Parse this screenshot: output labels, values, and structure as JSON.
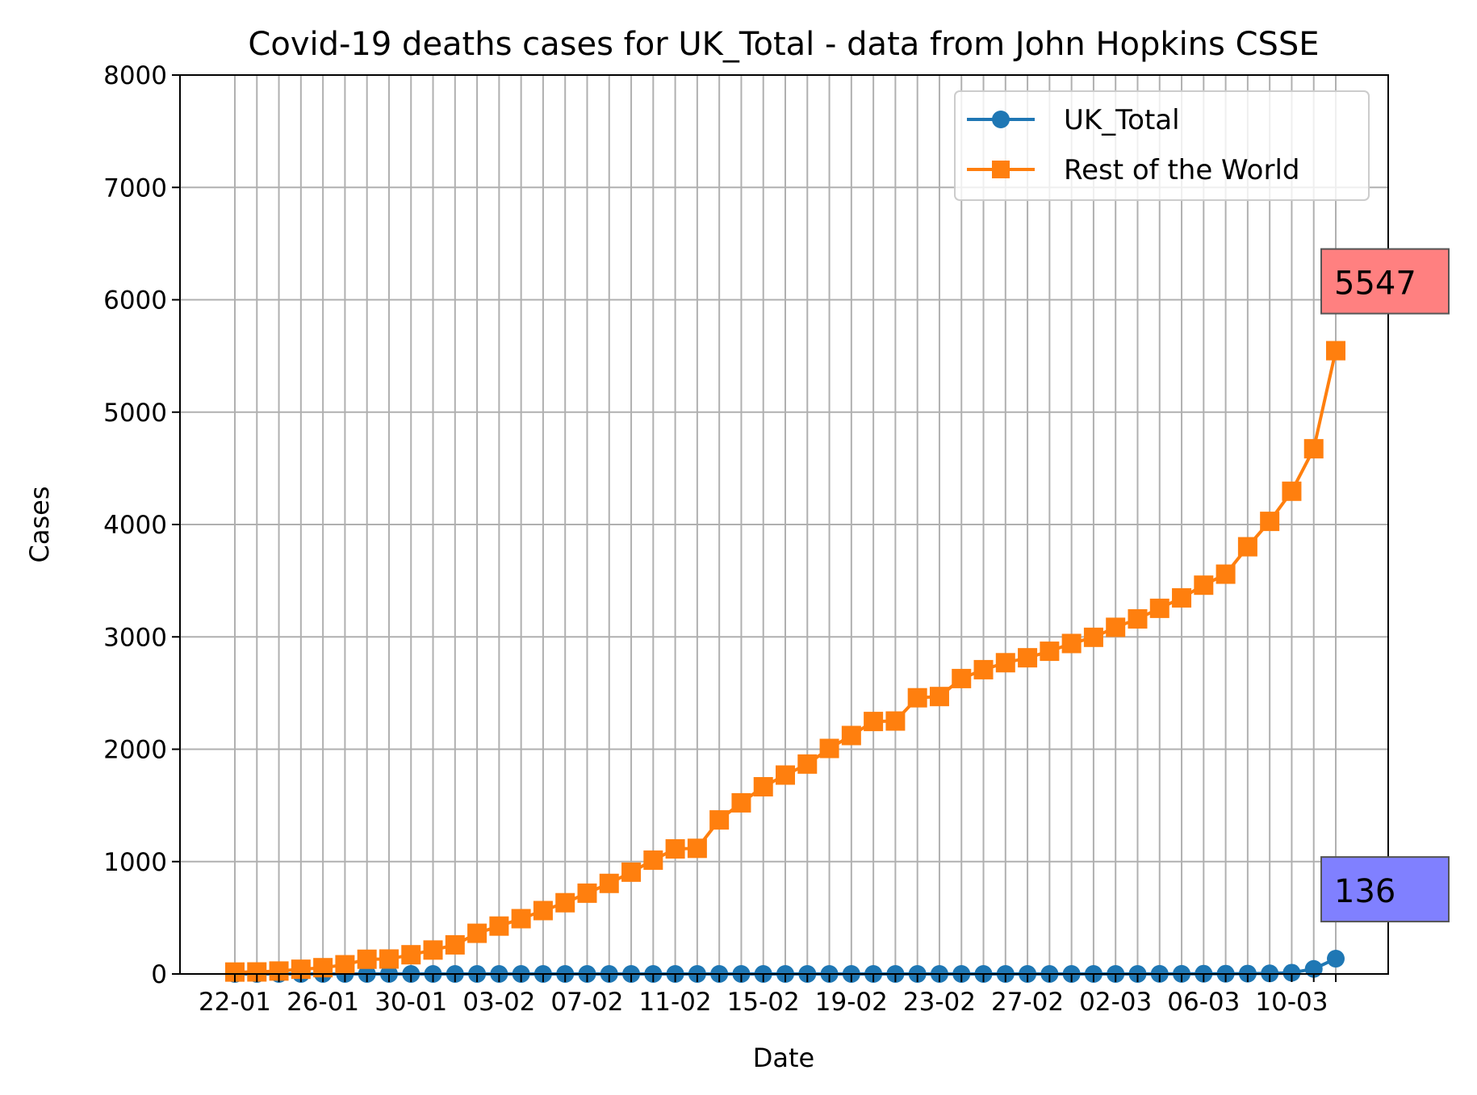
{
  "chart_data": {
    "type": "line",
    "title": "Covid-19 deaths cases for UK_Total - data from John Hopkins CSSE",
    "xlabel": "Date",
    "ylabel": "Cases",
    "ylim": [
      0,
      8000
    ],
    "yticks": [
      0,
      1000,
      2000,
      3000,
      4000,
      5000,
      6000,
      7000,
      8000
    ],
    "grid": true,
    "legend_placement": "top-right",
    "x": [
      "22-01",
      "23-01",
      "24-01",
      "25-01",
      "26-01",
      "27-01",
      "28-01",
      "29-01",
      "30-01",
      "31-01",
      "01-02",
      "02-02",
      "03-02",
      "04-02",
      "05-02",
      "06-02",
      "07-02",
      "08-02",
      "09-02",
      "10-02",
      "11-02",
      "12-02",
      "13-02",
      "14-02",
      "15-02",
      "16-02",
      "17-02",
      "18-02",
      "19-02",
      "20-02",
      "21-02",
      "22-02",
      "23-02",
      "24-02",
      "25-02",
      "26-02",
      "27-02",
      "28-02",
      "29-02",
      "01-03",
      "02-03",
      "03-03",
      "04-03",
      "05-03",
      "06-03",
      "07-03",
      "08-03",
      "09-03",
      "10-03",
      "11-03",
      "12-03"
    ],
    "xtick_labels": [
      "22-01",
      "26-01",
      "30-01",
      "03-02",
      "07-02",
      "11-02",
      "15-02",
      "19-02",
      "23-02",
      "27-02",
      "02-03",
      "06-03",
      "10-03"
    ],
    "series": [
      {
        "name": "UK_Total",
        "color": "#1f77b4",
        "marker": "circle",
        "values": [
          0,
          0,
          0,
          0,
          0,
          0,
          0,
          0,
          0,
          0,
          0,
          0,
          0,
          0,
          0,
          0,
          0,
          0,
          0,
          0,
          0,
          0,
          0,
          0,
          0,
          0,
          0,
          0,
          0,
          0,
          0,
          0,
          0,
          0,
          0,
          0,
          0,
          0,
          0,
          0,
          0,
          0,
          1,
          1,
          2,
          2,
          3,
          5,
          11,
          45,
          136
        ],
        "end_label": "136",
        "end_label_color": "#8080ff"
      },
      {
        "name": "Rest of the World",
        "color": "#ff7f0e",
        "marker": "square",
        "values": [
          17,
          18,
          26,
          42,
          56,
          82,
          131,
          133,
          171,
          213,
          259,
          362,
          426,
          492,
          564,
          634,
          719,
          806,
          906,
          1013,
          1113,
          1118,
          1371,
          1523,
          1666,
          1770,
          1868,
          2007,
          2122,
          2247,
          2251,
          2458,
          2469,
          2629,
          2708,
          2770,
          2814,
          2872,
          2941,
          2996,
          3085,
          3160,
          3254,
          3347,
          3460,
          3558,
          3802,
          4028,
          4296,
          4674,
          5547
        ],
        "end_label": "5547",
        "end_label_color": "#ff8080"
      }
    ]
  }
}
